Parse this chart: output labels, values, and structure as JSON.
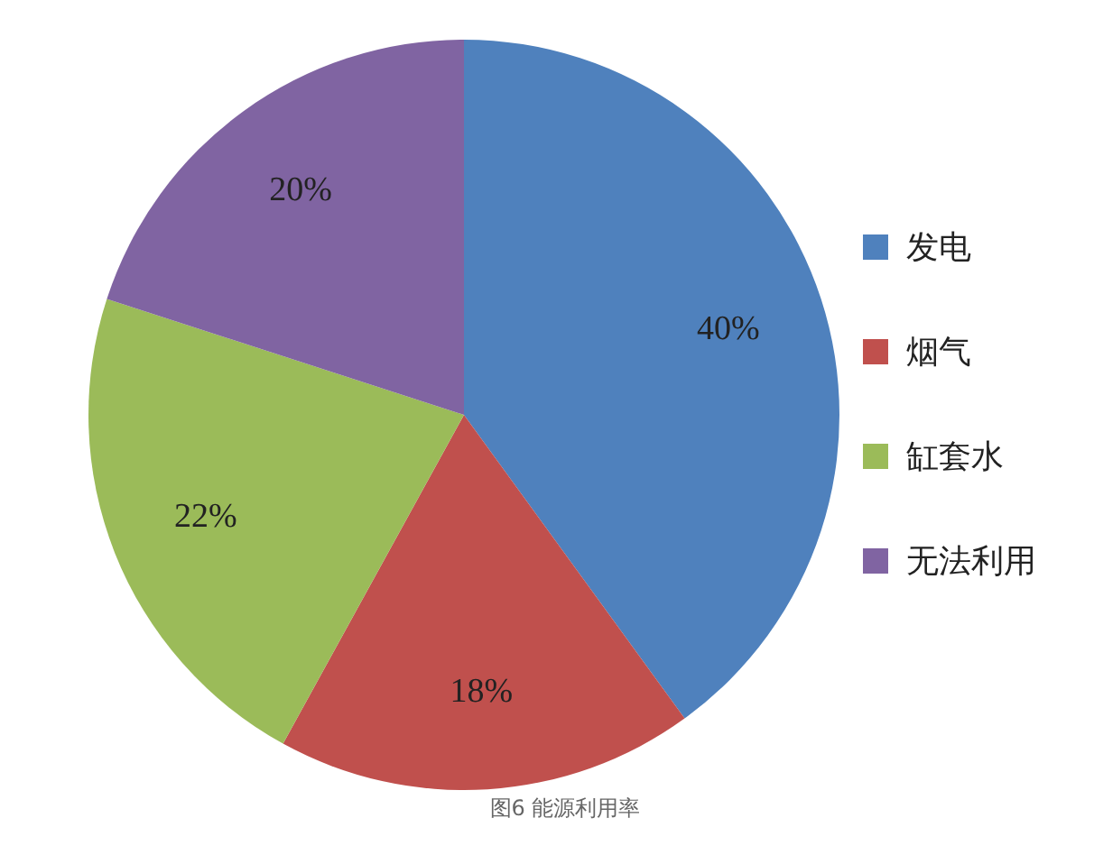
{
  "chart_data": {
    "type": "pie",
    "title": "图6 能源利用率",
    "categories": [
      "发电",
      "烟气",
      "缸套水",
      "无法利用"
    ],
    "values": [
      40,
      18,
      22,
      20
    ],
    "value_labels": [
      "40%",
      "18%",
      "22%",
      "20%"
    ],
    "colors": [
      "#4f81bd",
      "#c0504d",
      "#9bbb59",
      "#8064a2"
    ],
    "legend": "right"
  }
}
